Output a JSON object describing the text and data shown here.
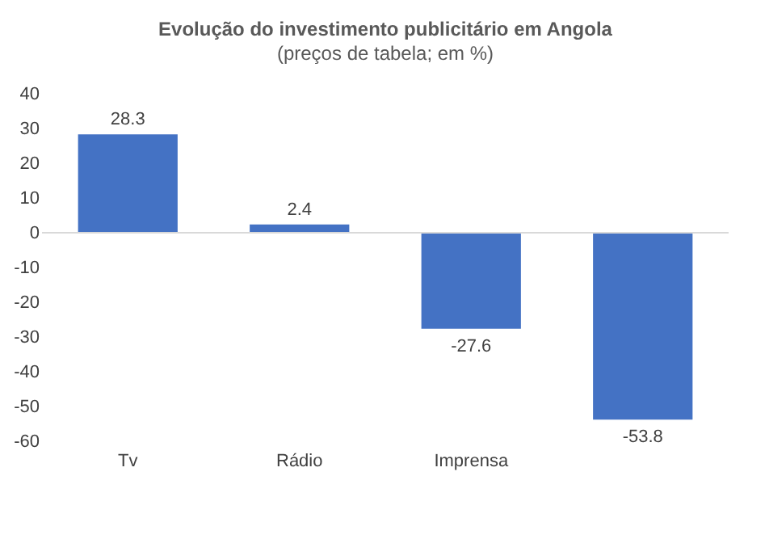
{
  "chart_data": {
    "type": "bar",
    "title": "Evolução do investimento publicitário em Angola",
    "subtitle": "(preços de tabela; em %)",
    "categories": [
      "Tv",
      "Rádio",
      "Imprensa",
      null
    ],
    "values": [
      28.3,
      2.4,
      -27.6,
      -53.8
    ],
    "color": "#4472c4",
    "ylim": [
      -60,
      40
    ],
    "yticks": [
      -60,
      -50,
      -40,
      -30,
      -20,
      -10,
      0,
      10,
      20,
      30,
      40
    ],
    "data_labels": true
  }
}
